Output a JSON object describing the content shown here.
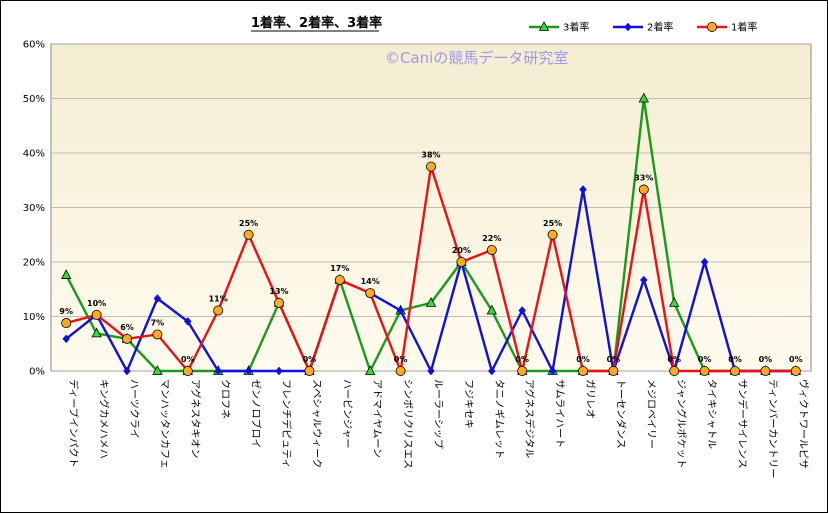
{
  "chart_data": {
    "type": "line",
    "title": "1着率、2着率、3着率",
    "watermark": "©Caniの競馬データ研究室",
    "ylim": [
      0,
      60
    ],
    "yticks": [
      "0%",
      "10%",
      "20%",
      "30%",
      "40%",
      "50%",
      "60%"
    ],
    "ytick_values": [
      0,
      10,
      20,
      30,
      40,
      50,
      60
    ],
    "grid": true,
    "legend_position": "top-right",
    "categories": [
      "ディープインパクト",
      "キングカメハメハ",
      "ハーツクライ",
      "マンハッタンカフェ",
      "アグネスタキオン",
      "クロフネ",
      "ゼンノロブロイ",
      "フレンチデピュティ",
      "スペシャルウィーク",
      "ハービンジャー",
      "アドマイヤムーン",
      "シンボリクリスエス",
      "ルーラーシップ",
      "フジキセキ",
      "タニノギムレット",
      "アグネスデジタル",
      "サムライハート",
      "ガリレオ",
      "トーセンダンス",
      "メジロベイリー",
      "ジャングルポケット",
      "タイキシャトル",
      "サンデーサイレンス",
      "ティンバーカントリー",
      "ヴィクトワールピサ"
    ],
    "series": [
      {
        "name": "3着率",
        "color": "#1a9a1a",
        "marker": "triangle",
        "marker_fill": "#33dd33",
        "values": [
          17.6,
          6.9,
          5.9,
          0,
          0,
          0,
          0,
          12.5,
          0,
          16.7,
          0,
          11.1,
          12.5,
          20,
          11.1,
          0,
          0,
          0,
          0,
          50,
          12.5,
          0,
          0,
          0,
          0
        ]
      },
      {
        "name": "2着率",
        "color": "#1010dd",
        "marker": "diamond",
        "marker_fill": "#1010dd",
        "values": [
          5.9,
          10.3,
          0,
          13.3,
          9.1,
          0,
          0,
          0,
          0,
          16.7,
          14.3,
          11.1,
          0,
          20,
          0,
          11.1,
          0,
          33.3,
          0,
          16.7,
          0,
          20,
          0,
          0,
          0
        ]
      },
      {
        "name": "1着率",
        "color": "#ee1111",
        "marker": "circle",
        "marker_fill": "#ffaa22",
        "values": [
          8.8,
          10.3,
          5.9,
          6.7,
          0,
          11.1,
          25,
          12.5,
          0,
          16.7,
          14.3,
          0,
          37.5,
          20,
          22.2,
          0,
          25,
          0,
          0,
          33.3,
          0,
          0,
          0,
          0,
          0
        ]
      }
    ],
    "data_labels": {
      "series": "1着率",
      "texts": [
        "9%",
        "10%",
        "6%",
        "7%",
        "0%",
        "11%",
        "25%",
        "13%",
        "0%",
        "17%",
        "14%",
        "0%",
        "38%",
        "20%",
        "22%",
        "0%",
        "25%",
        "0%",
        "0%",
        "33%",
        "0%",
        "0%",
        "0%",
        "0%",
        "0%"
      ]
    }
  }
}
